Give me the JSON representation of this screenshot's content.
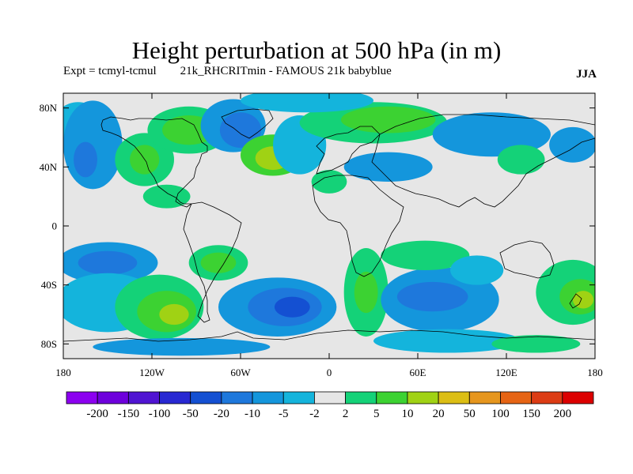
{
  "title": "Height perturbation at 500 hPa (in m)",
  "subtitle": "Expt = tcmyl-tcmul        21k_RHCRITmin - FAMOUS 21k babyblue",
  "season": "JJA",
  "map": {
    "projection": "cylindrical-equidistant",
    "lon_range": [
      -180,
      180
    ],
    "lat_range": [
      -90,
      90
    ],
    "lat_ticks": [
      {
        "value": 80,
        "label": "80N"
      },
      {
        "value": 40,
        "label": "40N"
      },
      {
        "value": 0,
        "label": "0"
      },
      {
        "value": -40,
        "label": "40S"
      },
      {
        "value": -80,
        "label": "80S"
      }
    ],
    "lon_ticks": [
      {
        "value": -180,
        "label": "180"
      },
      {
        "value": -120,
        "label": "120W"
      },
      {
        "value": -60,
        "label": "60W"
      },
      {
        "value": 0,
        "label": "0"
      },
      {
        "value": 60,
        "label": "60E"
      },
      {
        "value": 120,
        "label": "120E"
      },
      {
        "value": 180,
        "label": "180"
      }
    ],
    "background_color": "#e6e6e6",
    "coastline_color": "#000000"
  },
  "colorbar": {
    "labels": [
      "-200",
      "-150",
      "-100",
      "-50",
      "-20",
      "-10",
      "-5",
      "-2",
      "2",
      "5",
      "10",
      "20",
      "50",
      "100",
      "150",
      "200"
    ],
    "colors": [
      "#8c00f0",
      "#6e00dc",
      "#5014d2",
      "#2828d2",
      "#1450d2",
      "#1e78dc",
      "#1496dc",
      "#14b4dc",
      "#e6e6e6",
      "#14d278",
      "#3cd232",
      "#a0d214",
      "#dcbe14",
      "#e6961e",
      "#e66414",
      "#dc3c14",
      "#dc0000"
    ]
  },
  "features": [
    {
      "lon": -170,
      "lat": 70,
      "rx": 16,
      "ry": 14,
      "level": -2
    },
    {
      "lon": -160,
      "lat": 55,
      "rx": 20,
      "ry": 30,
      "level": -5
    },
    {
      "lon": -165,
      "lat": 45,
      "rx": 8,
      "ry": 12,
      "level": -10
    },
    {
      "lon": -125,
      "lat": 45,
      "rx": 20,
      "ry": 18,
      "level": 2
    },
    {
      "lon": -125,
      "lat": 45,
      "rx": 10,
      "ry": 10,
      "level": 5
    },
    {
      "lon": -95,
      "lat": 65,
      "rx": 28,
      "ry": 16,
      "level": 2
    },
    {
      "lon": -95,
      "lat": 65,
      "rx": 18,
      "ry": 10,
      "level": 5
    },
    {
      "lon": -65,
      "lat": 68,
      "rx": 22,
      "ry": 18,
      "level": -5
    },
    {
      "lon": -60,
      "lat": 65,
      "rx": 14,
      "ry": 12,
      "level": -10
    },
    {
      "lon": -38,
      "lat": 48,
      "rx": 22,
      "ry": 14,
      "level": 5
    },
    {
      "lon": -38,
      "lat": 46,
      "rx": 12,
      "ry": 8,
      "level": 10
    },
    {
      "lon": -20,
      "lat": 55,
      "rx": 18,
      "ry": 20,
      "level": -2
    },
    {
      "lon": 0,
      "lat": 30,
      "rx": 12,
      "ry": 8,
      "level": 2
    },
    {
      "lon": 30,
      "lat": 70,
      "rx": 50,
      "ry": 14,
      "level": 2
    },
    {
      "lon": 40,
      "lat": 72,
      "rx": 32,
      "ry": 9,
      "level": 5
    },
    {
      "lon": -15,
      "lat": 85,
      "rx": 45,
      "ry": 8,
      "level": -2
    },
    {
      "lon": 40,
      "lat": 40,
      "rx": 30,
      "ry": 10,
      "level": -5
    },
    {
      "lon": 110,
      "lat": 62,
      "rx": 40,
      "ry": 15,
      "level": -5
    },
    {
      "lon": 130,
      "lat": 45,
      "rx": 16,
      "ry": 10,
      "level": 2
    },
    {
      "lon": 165,
      "lat": 55,
      "rx": 16,
      "ry": 12,
      "level": -5
    },
    {
      "lon": -110,
      "lat": 20,
      "rx": 16,
      "ry": 8,
      "level": 2
    },
    {
      "lon": -150,
      "lat": -25,
      "rx": 34,
      "ry": 14,
      "level": -5
    },
    {
      "lon": -150,
      "lat": -25,
      "rx": 20,
      "ry": 8,
      "level": -10
    },
    {
      "lon": -75,
      "lat": -25,
      "rx": 20,
      "ry": 12,
      "level": 2
    },
    {
      "lon": -75,
      "lat": -25,
      "rx": 12,
      "ry": 7,
      "level": 5
    },
    {
      "lon": -150,
      "lat": -52,
      "rx": 35,
      "ry": 20,
      "level": -2
    },
    {
      "lon": -115,
      "lat": -55,
      "rx": 30,
      "ry": 22,
      "level": 2
    },
    {
      "lon": -110,
      "lat": -58,
      "rx": 20,
      "ry": 14,
      "level": 5
    },
    {
      "lon": -105,
      "lat": -60,
      "rx": 10,
      "ry": 7,
      "level": 10
    },
    {
      "lon": -35,
      "lat": -55,
      "rx": 40,
      "ry": 20,
      "level": -5
    },
    {
      "lon": -30,
      "lat": -55,
      "rx": 25,
      "ry": 13,
      "level": -10
    },
    {
      "lon": -25,
      "lat": -55,
      "rx": 12,
      "ry": 7,
      "level": -20
    },
    {
      "lon": 25,
      "lat": -45,
      "rx": 15,
      "ry": 30,
      "level": 2
    },
    {
      "lon": 25,
      "lat": -45,
      "rx": 8,
      "ry": 14,
      "level": 5
    },
    {
      "lon": 75,
      "lat": -50,
      "rx": 40,
      "ry": 22,
      "level": -5
    },
    {
      "lon": 70,
      "lat": -48,
      "rx": 24,
      "ry": 10,
      "level": -10
    },
    {
      "lon": 65,
      "lat": -20,
      "rx": 30,
      "ry": 10,
      "level": 2
    },
    {
      "lon": 100,
      "lat": -30,
      "rx": 18,
      "ry": 10,
      "level": -2
    },
    {
      "lon": 165,
      "lat": -45,
      "rx": 25,
      "ry": 22,
      "level": 2
    },
    {
      "lon": 170,
      "lat": -48,
      "rx": 14,
      "ry": 12,
      "level": 5
    },
    {
      "lon": 172,
      "lat": -50,
      "rx": 7,
      "ry": 6,
      "level": 10
    },
    {
      "lon": 80,
      "lat": -78,
      "rx": 50,
      "ry": 8,
      "level": -2
    },
    {
      "lon": 140,
      "lat": -80,
      "rx": 30,
      "ry": 6,
      "level": 2
    },
    {
      "lon": -100,
      "lat": -82,
      "rx": 60,
      "ry": 6,
      "level": -5
    }
  ]
}
